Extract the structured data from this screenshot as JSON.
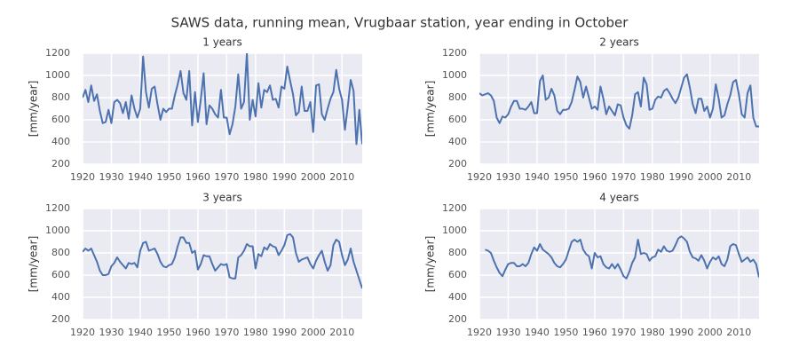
{
  "title": "SAWS data, running mean, Vrugbaar station, year ending in October",
  "chart_data": [
    {
      "type": "line",
      "title": "1 years",
      "ylabel": "[mm/year]",
      "color": "#4c72b0",
      "grid": true,
      "xlim": [
        1920,
        2017
      ],
      "xticks": [
        1920,
        1930,
        1940,
        1950,
        1960,
        1970,
        1980,
        1990,
        2000,
        2010
      ],
      "ylim": [
        200,
        1200
      ],
      "yticks": [
        200,
        400,
        600,
        800,
        1000,
        1200
      ],
      "x": [
        1920,
        1921,
        1922,
        1923,
        1924,
        1925,
        1926,
        1927,
        1928,
        1929,
        1930,
        1931,
        1932,
        1933,
        1934,
        1935,
        1936,
        1937,
        1938,
        1939,
        1940,
        1941,
        1942,
        1943,
        1944,
        1945,
        1946,
        1947,
        1948,
        1949,
        1950,
        1951,
        1952,
        1953,
        1954,
        1955,
        1956,
        1957,
        1958,
        1959,
        1960,
        1961,
        1962,
        1963,
        1964,
        1965,
        1966,
        1967,
        1968,
        1969,
        1970,
        1971,
        1972,
        1973,
        1974,
        1975,
        1976,
        1977,
        1978,
        1979,
        1980,
        1981,
        1982,
        1983,
        1984,
        1985,
        1986,
        1987,
        1988,
        1989,
        1990,
        1991,
        1992,
        1993,
        1994,
        1995,
        1996,
        1997,
        1998,
        1999,
        2000,
        2001,
        2002,
        2003,
        2004,
        2005,
        2006,
        2007,
        2008,
        2009,
        2010,
        2011,
        2012,
        2013,
        2014,
        2015,
        2016,
        2017
      ],
      "values": [
        800,
        870,
        760,
        910,
        770,
        830,
        680,
        570,
        580,
        690,
        570,
        760,
        780,
        750,
        660,
        760,
        610,
        820,
        700,
        620,
        700,
        1170,
        850,
        710,
        880,
        900,
        740,
        600,
        700,
        670,
        700,
        700,
        820,
        920,
        1040,
        840,
        780,
        1040,
        550,
        850,
        580,
        780,
        1020,
        560,
        730,
        700,
        650,
        620,
        870,
        620,
        620,
        470,
        560,
        720,
        1010,
        700,
        760,
        1200,
        600,
        780,
        630,
        930,
        710,
        870,
        850,
        910,
        780,
        790,
        710,
        900,
        880,
        1080,
        950,
        830,
        640,
        670,
        900,
        680,
        680,
        760,
        490,
        910,
        920,
        650,
        600,
        700,
        790,
        850,
        1050,
        880,
        780,
        510,
        720,
        960,
        860,
        380,
        690,
        380
      ]
    },
    {
      "type": "line",
      "title": "2 years",
      "ylabel": "[mm/year]",
      "color": "#4c72b0",
      "grid": true,
      "xlim": [
        1920,
        2017
      ],
      "xticks": [
        1920,
        1930,
        1940,
        1950,
        1960,
        1970,
        1980,
        1990,
        2000,
        2010
      ],
      "ylim": [
        200,
        1200
      ],
      "yticks": [
        200,
        400,
        600,
        800,
        1000,
        1200
      ],
      "x": [
        1920,
        1921,
        1922,
        1923,
        1924,
        1925,
        1926,
        1927,
        1928,
        1929,
        1930,
        1931,
        1932,
        1933,
        1934,
        1935,
        1936,
        1937,
        1938,
        1939,
        1940,
        1941,
        1942,
        1943,
        1944,
        1945,
        1946,
        1947,
        1948,
        1949,
        1950,
        1951,
        1952,
        1953,
        1954,
        1955,
        1956,
        1957,
        1958,
        1959,
        1960,
        1961,
        1962,
        1963,
        1964,
        1965,
        1966,
        1967,
        1968,
        1969,
        1970,
        1971,
        1972,
        1973,
        1974,
        1975,
        1976,
        1977,
        1978,
        1979,
        1980,
        1981,
        1982,
        1983,
        1984,
        1985,
        1986,
        1987,
        1988,
        1989,
        1990,
        1991,
        1992,
        1993,
        1994,
        1995,
        1996,
        1997,
        1998,
        1999,
        2000,
        2001,
        2002,
        2003,
        2004,
        2005,
        2006,
        2007,
        2008,
        2009,
        2010,
        2011,
        2012,
        2013,
        2014,
        2015,
        2016,
        2017
      ],
      "values": [
        840,
        820,
        830,
        840,
        820,
        770,
        620,
        570,
        630,
        620,
        650,
        720,
        770,
        770,
        700,
        700,
        690,
        720,
        760,
        660,
        660,
        950,
        1000,
        780,
        800,
        880,
        820,
        680,
        650,
        690,
        690,
        700,
        760,
        870,
        990,
        940,
        800,
        900,
        800,
        700,
        720,
        690,
        900,
        790,
        650,
        720,
        680,
        640,
        740,
        730,
        620,
        550,
        520,
        640,
        830,
        850,
        720,
        980,
        920,
        690,
        700,
        780,
        810,
        800,
        860,
        880,
        840,
        790,
        750,
        800,
        890,
        980,
        1010,
        890,
        740,
        660,
        790,
        790,
        680,
        720,
        620,
        700,
        920,
        790,
        620,
        640,
        740,
        820,
        940,
        960,
        830,
        650,
        620,
        840,
        910,
        620,
        540,
        540
      ]
    },
    {
      "type": "line",
      "title": "3 years",
      "ylabel": "[mm/year]",
      "color": "#4c72b0",
      "grid": true,
      "xlim": [
        1920,
        2017
      ],
      "xticks": [
        1920,
        1930,
        1940,
        1950,
        1960,
        1970,
        1980,
        1990,
        2000,
        2010
      ],
      "ylim": [
        200,
        1200
      ],
      "yticks": [
        200,
        400,
        600,
        800,
        1000,
        1200
      ],
      "x": [
        1920,
        1921,
        1922,
        1923,
        1924,
        1925,
        1926,
        1927,
        1928,
        1929,
        1930,
        1931,
        1932,
        1933,
        1934,
        1935,
        1936,
        1937,
        1938,
        1939,
        1940,
        1941,
        1942,
        1943,
        1944,
        1945,
        1946,
        1947,
        1948,
        1949,
        1950,
        1951,
        1952,
        1953,
        1954,
        1955,
        1956,
        1957,
        1958,
        1959,
        1960,
        1961,
        1962,
        1963,
        1964,
        1965,
        1966,
        1967,
        1968,
        1969,
        1970,
        1971,
        1972,
        1973,
        1974,
        1975,
        1976,
        1977,
        1978,
        1979,
        1980,
        1981,
        1982,
        1983,
        1984,
        1985,
        1986,
        1987,
        1988,
        1989,
        1990,
        1991,
        1992,
        1993,
        1994,
        1995,
        1996,
        1997,
        1998,
        1999,
        2000,
        2001,
        2002,
        2003,
        2004,
        2005,
        2006,
        2007,
        2008,
        2009,
        2010,
        2011,
        2012,
        2013,
        2014,
        2015,
        2016,
        2017
      ],
      "values": [
        810,
        840,
        820,
        840,
        780,
        720,
        640,
        600,
        600,
        610,
        680,
        710,
        760,
        720,
        690,
        660,
        710,
        700,
        710,
        670,
        820,
        890,
        900,
        820,
        830,
        840,
        790,
        720,
        680,
        670,
        690,
        700,
        760,
        860,
        940,
        940,
        890,
        890,
        800,
        820,
        650,
        700,
        780,
        770,
        770,
        700,
        640,
        670,
        700,
        690,
        700,
        580,
        570,
        570,
        760,
        780,
        820,
        880,
        860,
        860,
        660,
        790,
        770,
        850,
        830,
        880,
        860,
        850,
        780,
        820,
        870,
        960,
        970,
        940,
        800,
        720,
        740,
        750,
        760,
        700,
        660,
        730,
        780,
        820,
        720,
        640,
        690,
        870,
        920,
        900,
        780,
        690,
        740,
        840,
        720,
        640,
        560,
        480
      ]
    },
    {
      "type": "line",
      "title": "4 years",
      "ylabel": "[mm/year]",
      "color": "#4c72b0",
      "grid": true,
      "xlim": [
        1920,
        2017
      ],
      "xticks": [
        1920,
        1930,
        1940,
        1950,
        1960,
        1970,
        1980,
        1990,
        2000,
        2010
      ],
      "ylim": [
        200,
        1200
      ],
      "yticks": [
        200,
        400,
        600,
        800,
        1000,
        1200
      ],
      "x": [
        1920,
        1921,
        1922,
        1923,
        1924,
        1925,
        1926,
        1927,
        1928,
        1929,
        1930,
        1931,
        1932,
        1933,
        1934,
        1935,
        1936,
        1937,
        1938,
        1939,
        1940,
        1941,
        1942,
        1943,
        1944,
        1945,
        1946,
        1947,
        1948,
        1949,
        1950,
        1951,
        1952,
        1953,
        1954,
        1955,
        1956,
        1957,
        1958,
        1959,
        1960,
        1961,
        1962,
        1963,
        1964,
        1965,
        1966,
        1967,
        1968,
        1969,
        1970,
        1971,
        1972,
        1973,
        1974,
        1975,
        1976,
        1977,
        1978,
        1979,
        1980,
        1981,
        1982,
        1983,
        1984,
        1985,
        1986,
        1987,
        1988,
        1989,
        1990,
        1991,
        1992,
        1993,
        1994,
        1995,
        1996,
        1997,
        1998,
        1999,
        2000,
        2001,
        2002,
        2003,
        2004,
        2005,
        2006,
        2007,
        2008,
        2009,
        2010,
        2011,
        2012,
        2013,
        2014,
        2015,
        2016,
        2017
      ],
      "values": [
        null,
        null,
        830,
        820,
        800,
        730,
        670,
        620,
        590,
        650,
        700,
        710,
        710,
        680,
        680,
        700,
        680,
        710,
        790,
        850,
        820,
        880,
        830,
        810,
        790,
        760,
        710,
        680,
        670,
        700,
        740,
        820,
        900,
        920,
        900,
        920,
        830,
        790,
        770,
        660,
        800,
        760,
        770,
        700,
        670,
        660,
        700,
        660,
        700,
        650,
        590,
        570,
        630,
        710,
        760,
        920,
        790,
        800,
        790,
        730,
        760,
        770,
        830,
        810,
        860,
        820,
        810,
        820,
        870,
        930,
        950,
        930,
        900,
        810,
        760,
        750,
        730,
        780,
        730,
        660,
        720,
        760,
        740,
        770,
        700,
        680,
        740,
        860,
        880,
        870,
        790,
        720,
        740,
        760,
        720,
        740,
        700,
        580
      ]
    }
  ]
}
